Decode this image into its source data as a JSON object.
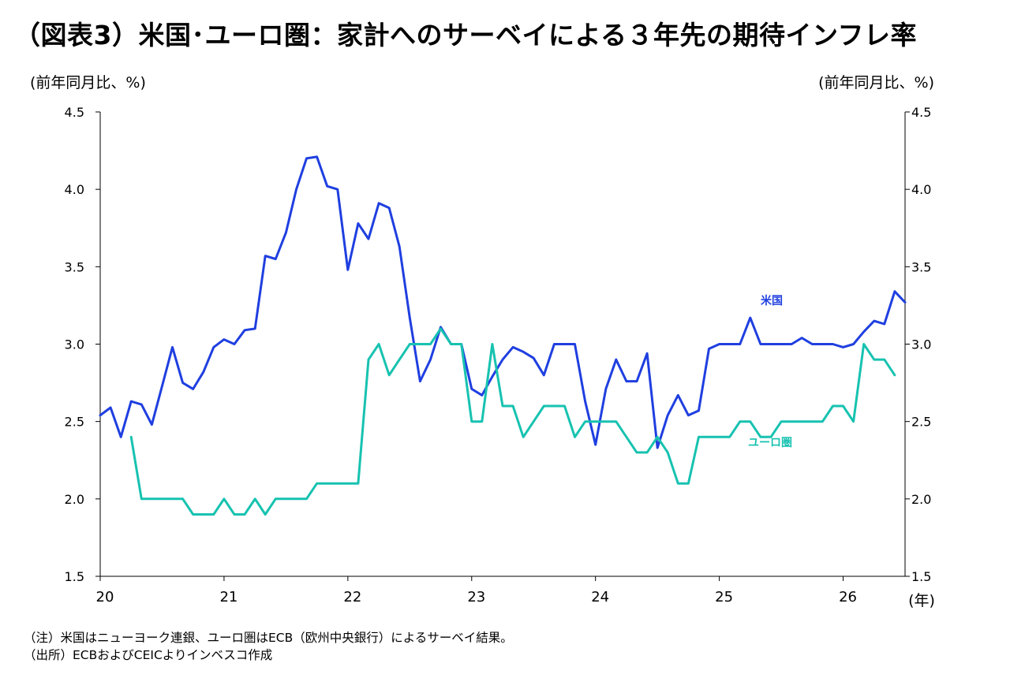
{
  "title": "（図表3）米国･ユーロ圏：家計へのサーベイによる３年先の期待インフレ率",
  "left_unit": "(前年同月比、%)",
  "right_unit": "(前年同月比、%)",
  "year_unit": "(年)",
  "notes": [
    "（注）米国はニューヨーク連銀、ユーロ圏はECB（欧州中央銀行）によるサーベイ結果。",
    "（出所）ECBおよびCEICよりインベスコ作成"
  ],
  "chart_data": {
    "type": "line",
    "title": "（図表3）米国･ユーロ圏：家計へのサーベイによる３年先の期待インフレ率",
    "ylabel": "(前年同月比、%)",
    "xlabel": "(年)",
    "ylim": [
      1.5,
      4.5
    ],
    "yticks": [
      "4.5",
      "4.0",
      "3.5",
      "3.0",
      "2.5",
      "2.0",
      "1.5"
    ],
    "ytick_values": [
      4.5,
      4.0,
      3.5,
      3.0,
      2.5,
      2.0,
      1.5
    ],
    "x_range": [
      "2020-01",
      "2026-07"
    ],
    "xticks": [
      "20",
      "21",
      "22",
      "23",
      "24",
      "25",
      "26"
    ],
    "grid": false,
    "series": [
      {
        "name": "米国",
        "color": "#1f3fe0",
        "start": "2020-01",
        "values": [
          2.54,
          2.59,
          2.4,
          2.63,
          2.61,
          2.48,
          2.73,
          2.98,
          2.75,
          2.71,
          2.82,
          2.98,
          3.03,
          3.0,
          3.09,
          3.1,
          3.57,
          3.55,
          3.72,
          4.0,
          4.2,
          4.21,
          4.02,
          4.0,
          3.48,
          3.78,
          3.68,
          3.91,
          3.88,
          3.63,
          3.17,
          2.76,
          2.9,
          3.11,
          3.0,
          3.0,
          2.71,
          2.67,
          2.79,
          2.9,
          2.98,
          2.95,
          2.91,
          2.8,
          3.0,
          3.0,
          3.0,
          2.63,
          2.35,
          2.71,
          2.9,
          2.76,
          2.76,
          2.94,
          2.33,
          2.54,
          2.67,
          2.54,
          2.57,
          2.97,
          3.0,
          3.0,
          3.0,
          3.17,
          3.0,
          3.0,
          3.0,
          3.0,
          3.04,
          3.0,
          3.0,
          3.0,
          2.98,
          3.0,
          3.08,
          3.15,
          3.13,
          3.34,
          3.27
        ]
      },
      {
        "name": "ユーロ圏",
        "color": "#17c2b0",
        "start": "2020-04",
        "values": [
          2.4,
          2.0,
          2.0,
          2.0,
          2.0,
          2.0,
          1.9,
          1.9,
          1.9,
          2.0,
          1.9,
          1.9,
          2.0,
          1.9,
          2.0,
          2.0,
          2.0,
          2.0,
          2.1,
          2.1,
          2.1,
          2.1,
          2.1,
          2.9,
          3.0,
          2.8,
          2.9,
          3.0,
          3.0,
          3.0,
          3.1,
          3.0,
          3.0,
          2.5,
          2.5,
          3.0,
          2.6,
          2.6,
          2.4,
          2.5,
          2.6,
          2.6,
          2.6,
          2.4,
          2.5,
          2.5,
          2.5,
          2.5,
          2.4,
          2.3,
          2.3,
          2.4,
          2.3,
          2.1,
          2.1,
          2.4,
          2.4,
          2.4,
          2.4,
          2.5,
          2.5,
          2.4,
          2.4,
          2.5,
          2.5,
          2.5,
          2.5,
          2.5,
          2.6,
          2.6,
          2.5,
          3.0,
          2.9,
          2.9,
          2.8
        ]
      }
    ]
  }
}
